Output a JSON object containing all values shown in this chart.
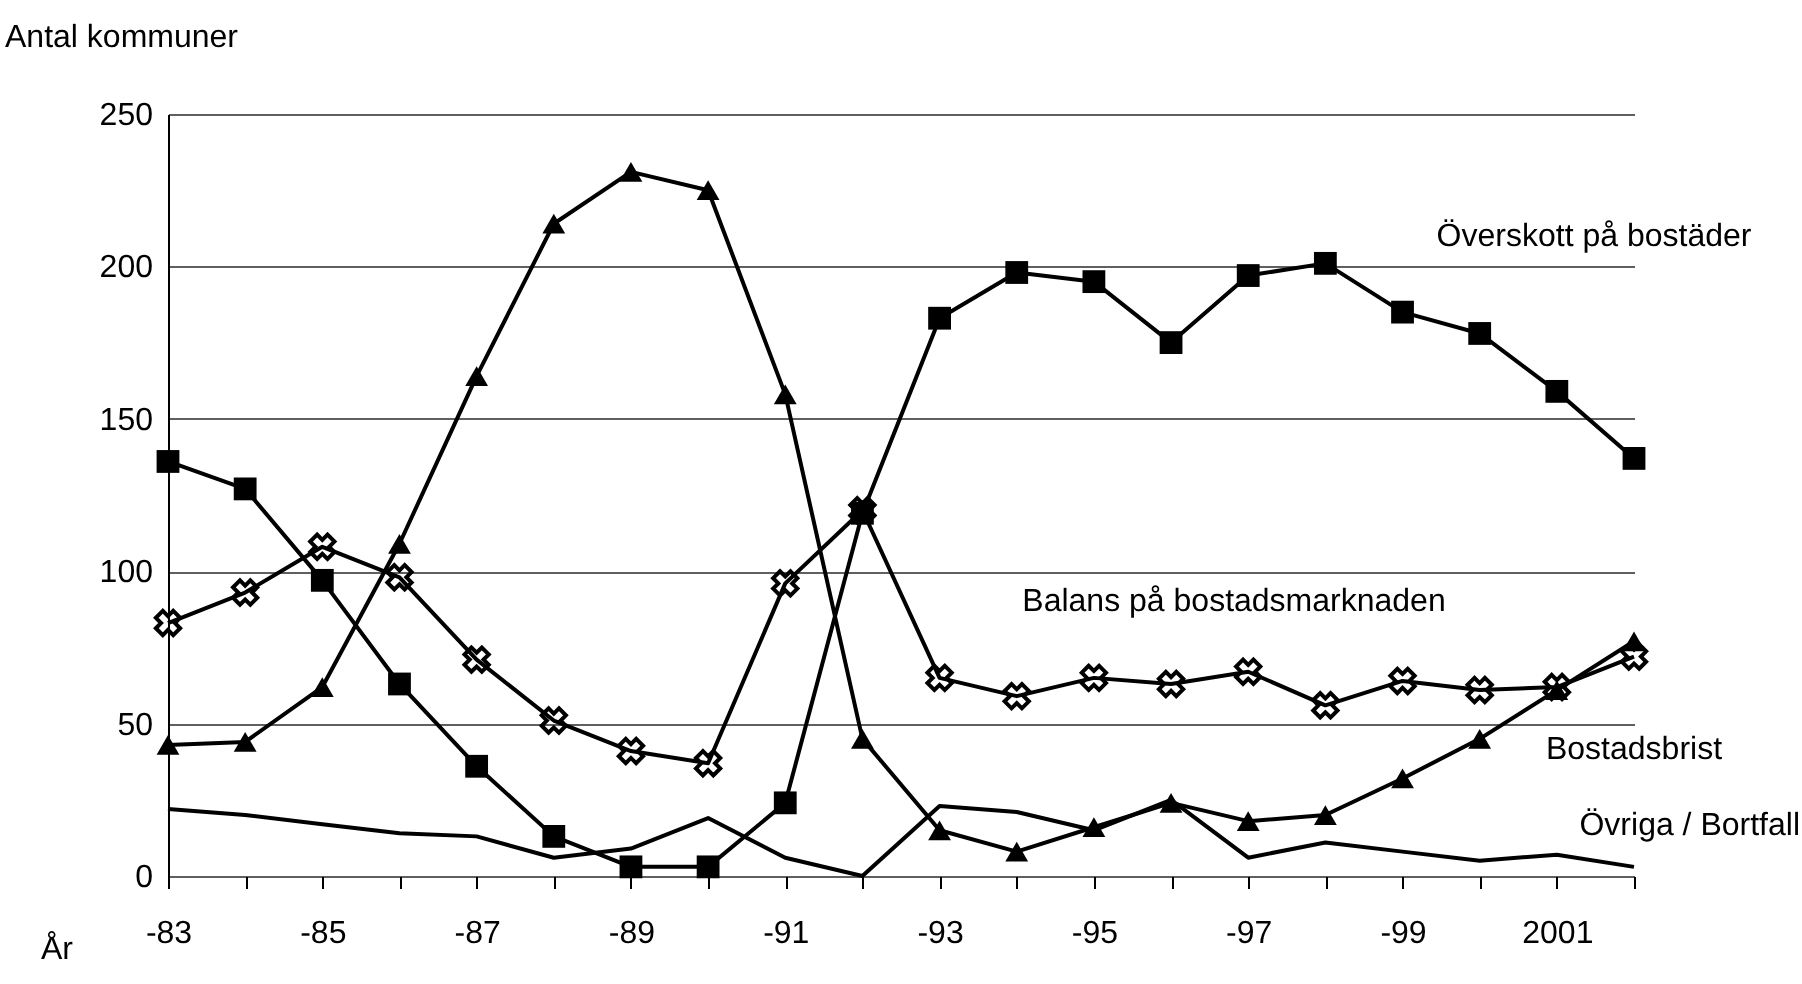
{
  "chart_data": {
    "type": "line",
    "xlabel": "År",
    "ylabel": "Antal kommuner",
    "categories": [
      "-83",
      null,
      "-85",
      null,
      "-87",
      null,
      "-89",
      null,
      "-91",
      null,
      "-93",
      null,
      "-95",
      null,
      "-97",
      null,
      "-99",
      null,
      "2001",
      null
    ],
    "ylim": [
      0,
      250
    ],
    "yticks": [
      0,
      50,
      100,
      150,
      200,
      250
    ],
    "grid": "y",
    "series": [
      {
        "name": "Överskott på bostäder",
        "color": "#000000",
        "marker": "square",
        "values": [
          136,
          127,
          97,
          63,
          36,
          13,
          3,
          3,
          24,
          119,
          183,
          198,
          195,
          175,
          197,
          201,
          185,
          178,
          159,
          137
        ]
      },
      {
        "name": "Balans på bostadsmarknaden",
        "color": "#000000",
        "marker": "cross",
        "values": [
          83,
          93,
          108,
          98,
          71,
          51,
          41,
          37,
          96,
          120,
          65,
          59,
          65,
          63,
          67,
          56,
          64,
          61,
          62,
          72
        ]
      },
      {
        "name": "Bostadsbrist",
        "color": "#000000",
        "marker": "triangle",
        "values": [
          43,
          44,
          62,
          109,
          164,
          214,
          231,
          225,
          158,
          45,
          15,
          8,
          16,
          24,
          18,
          20,
          32,
          45,
          61,
          77
        ]
      },
      {
        "name": "Övriga / Bortfall",
        "color": "#000000",
        "marker": "none",
        "values": [
          22,
          20,
          17,
          14,
          13,
          6,
          9,
          19,
          6,
          0,
          23,
          21,
          15,
          25,
          6,
          11,
          8,
          5,
          7,
          3
        ]
      }
    ]
  }
}
